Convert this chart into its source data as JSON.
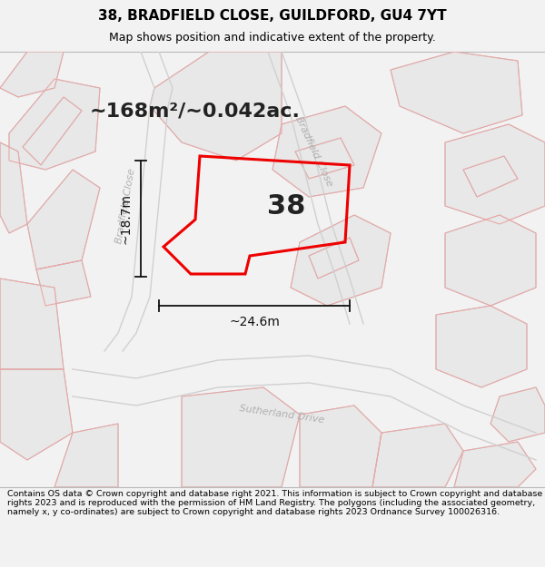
{
  "title": "38, BRADFIELD CLOSE, GUILDFORD, GU4 7YT",
  "subtitle": "Map shows position and indicative extent of the property.",
  "area_text": "~168m²/~0.042ac.",
  "number_label": "38",
  "dim1_text": "~18.7m",
  "dim2_text": "~24.6m",
  "footer": "Contains OS data © Crown copyright and database right 2021. This information is subject to Crown copyright and database rights 2023 and is reproduced with the permission of HM Land Registry. The polygons (including the associated geometry, namely x, y co-ordinates) are subject to Crown copyright and database rights 2023 Ordnance Survey 100026316.",
  "bg_color": "#f2f2f2",
  "map_bg": "#ffffff",
  "building_fill": "#e8e8e8",
  "building_edge_gray": "#c8c8c8",
  "building_edge_pink": "#e8a8a8",
  "road_label_color": "#b0b0b0",
  "red_line_color": "#ee0000",
  "dim_color": "#111111",
  "text_color": "#222222",
  "title_fontsize": 11,
  "subtitle_fontsize": 9,
  "area_fontsize": 16,
  "number_fontsize": 22,
  "dim_fontsize": 10,
  "road_fontsize": 8,
  "footer_fontsize": 6.8
}
